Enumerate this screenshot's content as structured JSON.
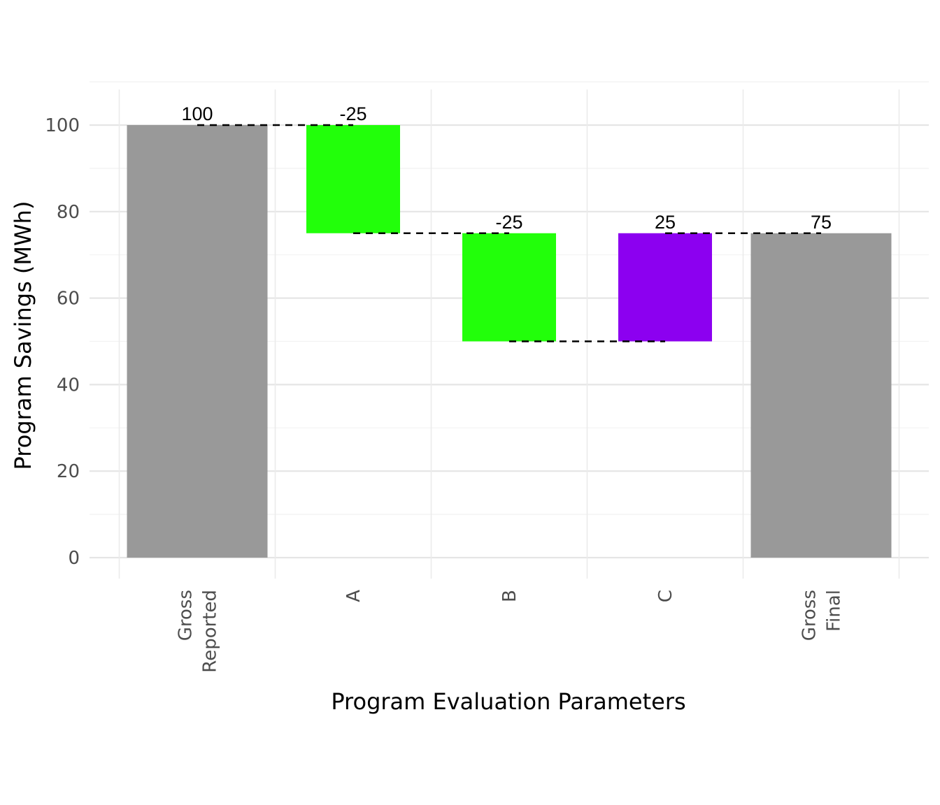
{
  "chart_data": {
    "type": "waterfall",
    "title": "",
    "xlabel": "Program Evaluation Parameters",
    "ylabel": "Program Savings (MWh)",
    "ylim": [
      -5,
      108
    ],
    "yticks": [
      0,
      20,
      40,
      60,
      80,
      100
    ],
    "grid": true,
    "legend": "none",
    "categories": [
      [
        "Gross",
        "Reported"
      ],
      [
        "A"
      ],
      [
        "B"
      ],
      [
        "C"
      ],
      [
        "Gross",
        "Final"
      ]
    ],
    "bars": [
      {
        "category": "Gross Reported",
        "start": 0,
        "end": 100,
        "label": "100",
        "kind": "total",
        "color": "#999999"
      },
      {
        "category": "A",
        "start": 100,
        "end": 75,
        "label": "-25",
        "kind": "change",
        "color": "#22ff0a"
      },
      {
        "category": "B",
        "start": 75,
        "end": 50,
        "label": "-25",
        "kind": "change",
        "color": "#22ff0a"
      },
      {
        "category": "C",
        "start": 50,
        "end": 75,
        "label": "25",
        "kind": "change",
        "color": "#8c00f0"
      },
      {
        "category": "Gross Final",
        "start": 0,
        "end": 75,
        "label": "75",
        "kind": "total",
        "color": "#999999"
      }
    ],
    "connectors": [
      {
        "from": 0,
        "to": 1,
        "y": 100
      },
      {
        "from": 1,
        "to": 2,
        "y": 75
      },
      {
        "from": 2,
        "to": 3,
        "y": 50
      },
      {
        "from": 3,
        "to": 4,
        "y": 75
      }
    ]
  }
}
